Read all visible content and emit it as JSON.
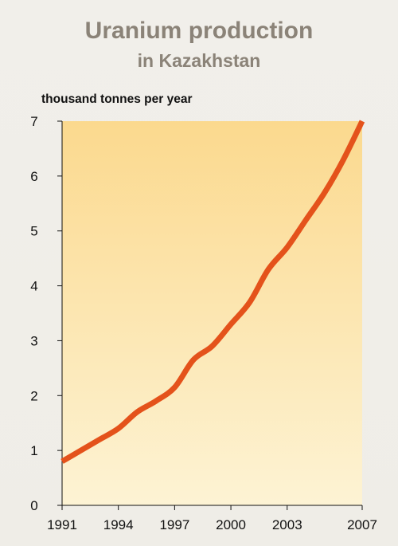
{
  "title": "Uranium production",
  "subtitle": "in Kazakhstan",
  "ylabel": "thousand tonnes per year",
  "colors": {
    "line": "#e4521b",
    "plot_top": "#fbd98e",
    "plot_bottom": "#fdf3d4",
    "title": "#8b8378"
  },
  "chart_data": {
    "type": "line",
    "title": "Uranium production",
    "subtitle": "in Kazakhstan",
    "xlabel": "",
    "ylabel": "thousand tonnes per year",
    "xlim": [
      1991,
      2007
    ],
    "ylim": [
      0,
      7
    ],
    "xticks": [
      "1991",
      "1994",
      "1997",
      "2000",
      "2003",
      "2007"
    ],
    "yticks": [
      "0",
      "1",
      "2",
      "3",
      "4",
      "5",
      "6",
      "7"
    ],
    "grid": false,
    "series": [
      {
        "x": [
          1991,
          1992,
          1993,
          1994,
          1995,
          1996,
          1997,
          1998,
          1999,
          2000,
          2001,
          2002,
          2003,
          2004,
          2005,
          2006,
          2007
        ],
        "values": [
          0.8,
          1.0,
          1.2,
          1.4,
          1.7,
          1.9,
          2.15,
          2.65,
          2.9,
          3.3,
          3.7,
          4.3,
          4.7,
          5.2,
          5.7,
          6.3,
          7.0
        ]
      }
    ]
  }
}
